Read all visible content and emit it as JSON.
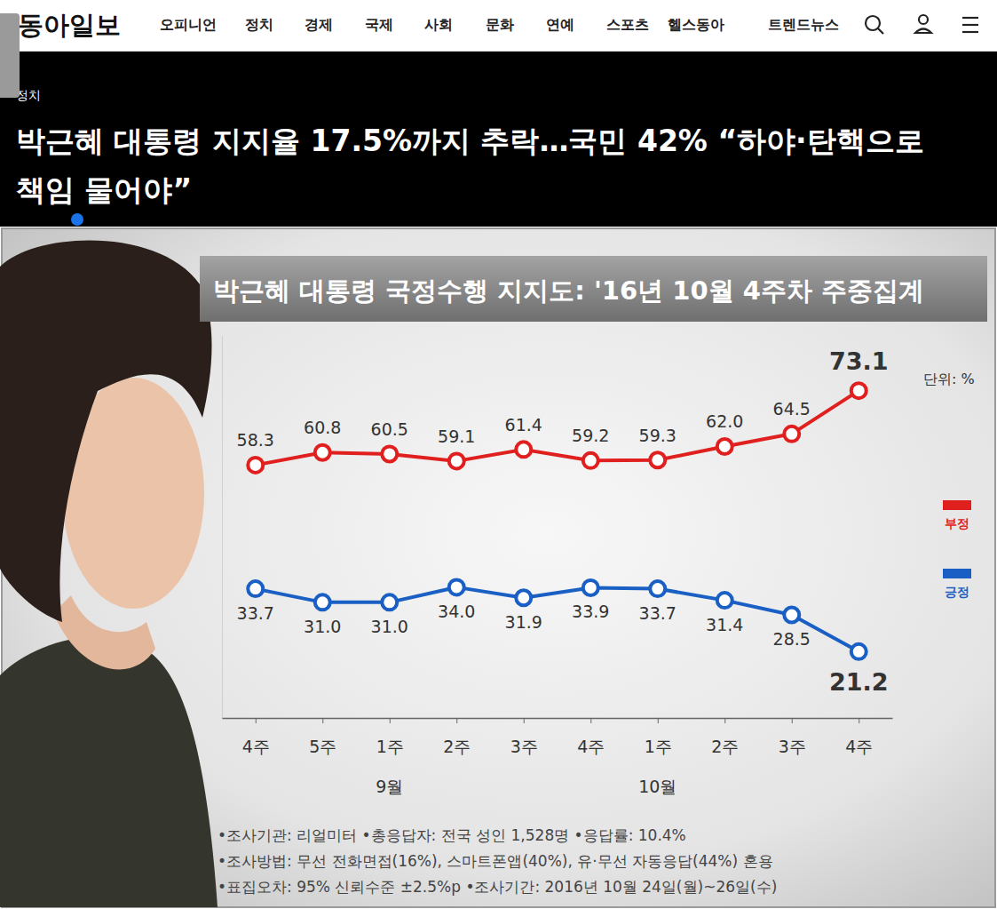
{
  "page": {
    "logo": "동아일보",
    "nav": [
      "오피니언",
      "정치",
      "경제",
      "국제",
      "사회",
      "문화",
      "연예",
      "스포츠",
      "헬스동아",
      "트렌드뉴스"
    ],
    "section": "정치",
    "headline": "박근혜 대통령 지지율 17.5%까지 추락…국민 42% “하야·탄핵으로 책임 물어야”"
  },
  "chart_data": {
    "type": "line",
    "title": "박근혜 대통령 국정수행 지지도: '16년 10월 4주차 주중집계",
    "unit_label": "단위: %",
    "categories": [
      "4주",
      "5주",
      "1주",
      "2주",
      "3주",
      "4주",
      "1주",
      "2주",
      "3주",
      "4주"
    ],
    "month_labels": [
      null,
      null,
      "9월",
      null,
      null,
      null,
      "10월",
      null,
      null,
      null
    ],
    "series": [
      {
        "name": "부정",
        "color": "#e0201f",
        "values": [
          58.3,
          60.8,
          60.5,
          59.1,
          61.4,
          59.2,
          59.3,
          62.0,
          64.5,
          73.1
        ],
        "value_labels": [
          "58.3",
          "60.8",
          "60.5",
          "59.1",
          "61.4",
          "59.2",
          "59.3",
          "62.0",
          "64.5",
          "73.1"
        ]
      },
      {
        "name": "긍정",
        "color": "#1a5fc4",
        "values": [
          33.7,
          31.0,
          31.0,
          34.0,
          31.9,
          33.9,
          33.7,
          31.4,
          28.5,
          21.2
        ],
        "value_labels": [
          "33.7",
          "31.0",
          "31.0",
          "34.0",
          "31.9",
          "33.9",
          "33.7",
          "31.4",
          "28.5",
          "21.2"
        ]
      }
    ],
    "ylim": [
      8,
      84
    ],
    "yticks": [],
    "tick_labels": "x",
    "data_labels": true,
    "marker": "circle",
    "legend": "right",
    "notes": [
      "•조사기관: 리얼미터 •총응답자: 전국 성인 1,528명 •응답률: 10.4%",
      "•조사방법: 무선 전화면접(16%), 스마트폰앱(40%), 유·무선 자동응답(44%) 혼용",
      "•표집오차: 95% 신뢰수준 ±2.5%p •조사기간: 2016년 10월 24일(월)~26일(수)"
    ]
  }
}
